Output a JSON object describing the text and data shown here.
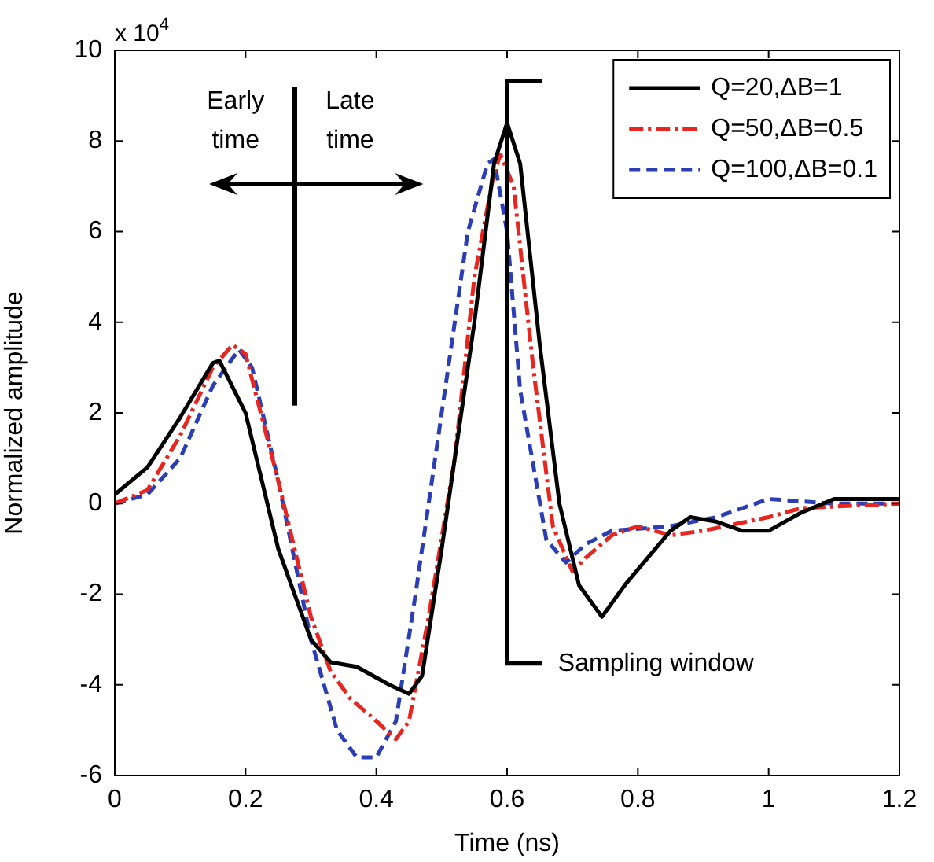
{
  "chart_data": {
    "type": "line",
    "xlabel": "Time (ns)",
    "ylabel": "Normalized amplitude",
    "xlim": [
      0,
      1.2
    ],
    "xticks": [
      0,
      0.2,
      0.4,
      0.6,
      0.8,
      1,
      1.2
    ],
    "ylim": [
      -6,
      10
    ],
    "yticks": [
      -6,
      -4,
      -2,
      0,
      2,
      4,
      6,
      8,
      10
    ],
    "grid": false,
    "legend": "top right",
    "marker": "none",
    "annotations": [
      "x 10$^{4}$",
      "Early time",
      "Late time",
      "Sampling window"
    ],
    "series": [
      {
        "name": "Q=20,ΔB=1",
        "color": "#000000",
        "line_style": "solid",
        "x": [
          0,
          0.05,
          0.1,
          0.15,
          0.16,
          0.2,
          0.25,
          0.3,
          0.33,
          0.37,
          0.42,
          0.45,
          0.47,
          0.5,
          0.55,
          0.58,
          0.6,
          0.62,
          0.65,
          0.68,
          0.71,
          0.745,
          0.78,
          0.85,
          0.88,
          0.92,
          0.96,
          1.0,
          1.05,
          1.1,
          1.2
        ],
        "values": [
          0.2,
          0.8,
          1.9,
          3.1,
          3.15,
          2.0,
          -1.0,
          -3.0,
          -3.5,
          -3.6,
          -4.0,
          -4.2,
          -3.8,
          -1.0,
          4.0,
          7.5,
          8.4,
          7.5,
          3.5,
          0,
          -1.8,
          -2.5,
          -1.8,
          -0.6,
          -0.3,
          -0.4,
          -0.6,
          -0.6,
          -0.2,
          0.1,
          0.1
        ]
      },
      {
        "name": "Q=50,ΔB=0.5",
        "color": "#e8251f",
        "line_style": "dashdot",
        "x": [
          0,
          0.05,
          0.1,
          0.15,
          0.18,
          0.2,
          0.25,
          0.3,
          0.33,
          0.36,
          0.4,
          0.43,
          0.45,
          0.48,
          0.52,
          0.55,
          0.58,
          0.59,
          0.61,
          0.64,
          0.67,
          0.7,
          0.72,
          0.76,
          0.8,
          0.85,
          0.9,
          1.0,
          1.05,
          1.2
        ],
        "values": [
          0,
          0.3,
          1.5,
          3.0,
          3.5,
          3.3,
          0.5,
          -2.5,
          -3.7,
          -4.3,
          -4.8,
          -5.2,
          -4.8,
          -2.5,
          1.0,
          5.0,
          7.3,
          7.7,
          7.0,
          3.0,
          -0.5,
          -1.5,
          -1.2,
          -0.7,
          -0.5,
          -0.7,
          -0.6,
          -0.3,
          -0.1,
          0
        ]
      },
      {
        "name": "Q=100,ΔB=0.1",
        "color": "#2a3fb5",
        "line_style": "dashed",
        "x": [
          0,
          0.05,
          0.1,
          0.15,
          0.19,
          0.21,
          0.25,
          0.3,
          0.34,
          0.37,
          0.4,
          0.43,
          0.46,
          0.5,
          0.54,
          0.57,
          0.58,
          0.6,
          0.62,
          0.66,
          0.69,
          0.72,
          0.76,
          0.85,
          0.92,
          1.0,
          1.1,
          1.2
        ],
        "values": [
          0,
          0.2,
          1.0,
          2.6,
          3.4,
          3.0,
          0.5,
          -3.0,
          -5.0,
          -5.6,
          -5.6,
          -4.8,
          -2.0,
          2.0,
          6.0,
          7.5,
          7.6,
          6.0,
          2.5,
          -0.8,
          -1.3,
          -0.9,
          -0.6,
          -0.5,
          -0.3,
          0.1,
          0,
          0
        ]
      }
    ]
  }
}
